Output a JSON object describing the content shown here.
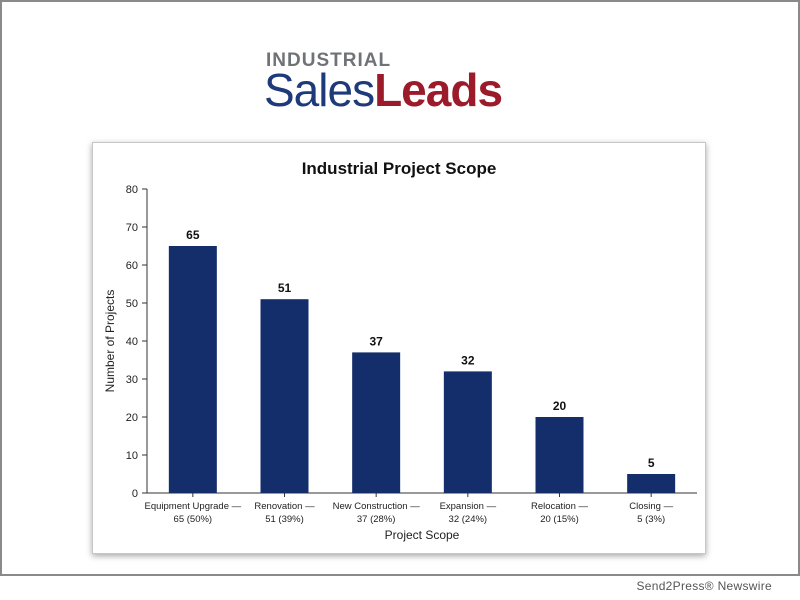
{
  "logo": {
    "top_text": "INDUSTRIAL",
    "sales_text": "Sales",
    "leads_text": "Leads"
  },
  "footer": {
    "credit": "Send2Press® Newswire"
  },
  "colors": {
    "bar": "#142d6b",
    "logo_blue": "#1f3a7a",
    "logo_red": "#9b1b2a"
  },
  "chart_data": {
    "type": "bar",
    "title": "Industrial Project Scope",
    "xlabel": "Project Scope",
    "ylabel": "Number of Projects",
    "ylim": [
      0,
      80
    ],
    "yticks": [
      0,
      10,
      20,
      30,
      40,
      50,
      60,
      70,
      80
    ],
    "grid": false,
    "categories": [
      [
        "Equipment Upgrade —",
        "65 (50%)"
      ],
      [
        "Renovation —",
        "51 (39%)"
      ],
      [
        "New Construction —",
        "37 (28%)"
      ],
      [
        "Expansion —",
        "32 (24%)"
      ],
      [
        "Relocation —",
        "20 (15%)"
      ],
      [
        "Closing —",
        "5 (3%)"
      ]
    ],
    "values": [
      65,
      51,
      37,
      32,
      20,
      5
    ]
  }
}
